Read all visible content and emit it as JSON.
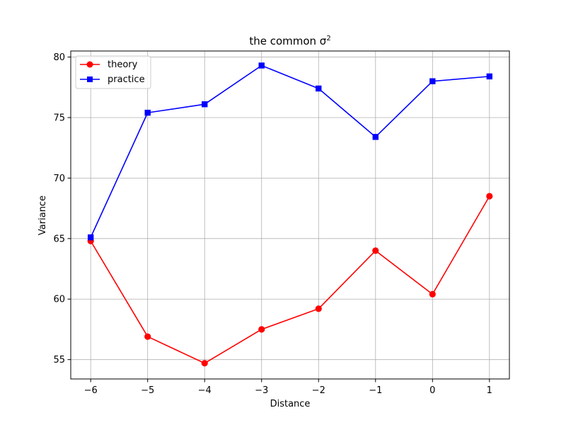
{
  "chart_data": {
    "type": "line",
    "title_base": "the common σ",
    "title_superscript": "2",
    "xlabel": "Distance",
    "ylabel": "Variance",
    "x": [
      -6,
      -5,
      -4,
      -3,
      -2,
      -1,
      0,
      1
    ],
    "xlim": [
      -6.35,
      1.35
    ],
    "ylim": [
      53.4,
      80.5
    ],
    "xticks": [
      -6,
      -5,
      -4,
      -3,
      -2,
      -1,
      0,
      1
    ],
    "xtick_labels": [
      "−6",
      "−5",
      "−4",
      "−3",
      "−2",
      "−1",
      "0",
      "1"
    ],
    "yticks": [
      55,
      60,
      65,
      70,
      75,
      80
    ],
    "ytick_labels": [
      "55",
      "60",
      "65",
      "70",
      "75",
      "80"
    ],
    "grid": true,
    "legend_position": "top-left",
    "series": [
      {
        "name": "theory",
        "color": "#ff0000",
        "marker": "circle",
        "values": [
          64.8,
          56.9,
          54.7,
          57.5,
          59.2,
          64.0,
          60.4,
          68.5
        ]
      },
      {
        "name": "practice",
        "color": "#0000ff",
        "marker": "square",
        "values": [
          65.1,
          75.4,
          76.1,
          79.3,
          77.4,
          73.4,
          78.0,
          78.4
        ]
      }
    ]
  }
}
